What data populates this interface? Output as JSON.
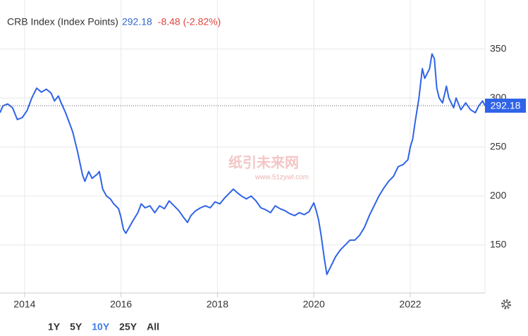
{
  "chart_data": {
    "type": "line",
    "title": "CRB Index (Index Points)",
    "last_value": 292.18,
    "change": "-8.48 (-2.82%)",
    "color": "#2f63e8",
    "grid": true,
    "watermark": [
      "纸引未来网",
      "www.51zywl.com"
    ],
    "xlim": [
      2013.49,
      2023.55
    ],
    "xticks": [
      2014,
      2016,
      2018,
      2020,
      2022
    ],
    "ylim": [
      101,
      400
    ],
    "yticks": [
      150,
      200,
      250,
      300,
      350
    ],
    "x": [
      2013.49,
      2013.55,
      2013.65,
      2013.75,
      2013.85,
      2013.95,
      2014.05,
      2014.15,
      2014.25,
      2014.35,
      2014.45,
      2014.55,
      2014.62,
      2014.7,
      2014.75,
      2014.85,
      2014.95,
      2015.0,
      2015.1,
      2015.2,
      2015.25,
      2015.33,
      2015.4,
      2015.5,
      2015.55,
      2015.62,
      2015.7,
      2015.78,
      2015.85,
      2015.95,
      2016.0,
      2016.05,
      2016.1,
      2016.17,
      2016.25,
      2016.35,
      2016.42,
      2016.5,
      2016.6,
      2016.7,
      2016.8,
      2016.9,
      2017.0,
      2017.1,
      2017.2,
      2017.3,
      2017.38,
      2017.45,
      2017.55,
      2017.65,
      2017.75,
      2017.85,
      2017.95,
      2018.05,
      2018.15,
      2018.25,
      2018.33,
      2018.42,
      2018.5,
      2018.6,
      2018.7,
      2018.8,
      2018.9,
      2019.0,
      2019.1,
      2019.2,
      2019.3,
      2019.4,
      2019.5,
      2019.6,
      2019.7,
      2019.8,
      2019.9,
      2020.0,
      2020.05,
      2020.1,
      2020.15,
      2020.22,
      2020.27,
      2020.35,
      2020.45,
      2020.55,
      2020.65,
      2020.75,
      2020.85,
      2020.95,
      2021.05,
      2021.15,
      2021.25,
      2021.35,
      2021.45,
      2021.55,
      2021.65,
      2021.75,
      2021.85,
      2021.95,
      2022.0,
      2022.05,
      2022.1,
      2022.18,
      2022.25,
      2022.3,
      2022.4,
      2022.45,
      2022.5,
      2022.55,
      2022.6,
      2022.67,
      2022.75,
      2022.8,
      2022.9,
      2022.95,
      2023.05,
      2023.15,
      2023.25,
      2023.35,
      2023.42,
      2023.5,
      2023.55
    ],
    "values": [
      285,
      292,
      294,
      290,
      278,
      280,
      287,
      300,
      310,
      306,
      309,
      305,
      297,
      302,
      296,
      285,
      272,
      265,
      245,
      222,
      215,
      225,
      218,
      222,
      225,
      207,
      200,
      197,
      192,
      187,
      178,
      166,
      162,
      168,
      175,
      183,
      192,
      188,
      190,
      183,
      190,
      187,
      195,
      190,
      185,
      178,
      173,
      180,
      185,
      188,
      190,
      188,
      194,
      192,
      198,
      203,
      207,
      203,
      200,
      197,
      200,
      195,
      188,
      186,
      183,
      190,
      187,
      185,
      182,
      180,
      183,
      181,
      184,
      193,
      185,
      175,
      160,
      135,
      120,
      128,
      138,
      145,
      150,
      155,
      155,
      160,
      168,
      180,
      190,
      200,
      208,
      215,
      220,
      230,
      232,
      237,
      250,
      258,
      275,
      300,
      330,
      320,
      330,
      345,
      340,
      310,
      300,
      295,
      312,
      300,
      290,
      300,
      288,
      295,
      288,
      285,
      292,
      297,
      292.18
    ]
  },
  "controls": {
    "range_buttons": [
      "1Y",
      "5Y",
      "10Y",
      "25Y",
      "All"
    ],
    "active_range": "10Y"
  }
}
